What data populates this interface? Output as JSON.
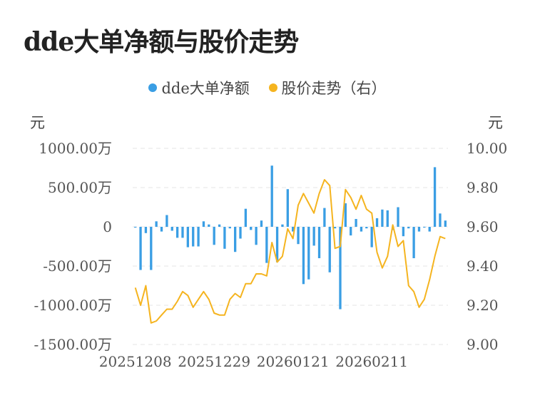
{
  "title": "dde大单净额与股价走势",
  "legend": [
    {
      "label": "dde大单净额",
      "color": "#3a9ee4"
    },
    {
      "label": "股价走势（右）",
      "color": "#f5b41f"
    }
  ],
  "axis_units": {
    "left": "元",
    "right": "元"
  },
  "chart_data": {
    "type": "bar+line",
    "x_tick_labels": [
      "20251208",
      "20251229",
      "20260121",
      "20260211"
    ],
    "x_tick_indices": [
      0,
      15,
      30,
      45
    ],
    "left_axis": {
      "ticks": [
        "1000.00万",
        "500.00万",
        "0",
        "-500.00万",
        "-1000.00万",
        "-1500.00万"
      ],
      "range": [
        -1500,
        1000
      ],
      "unit": "万"
    },
    "right_axis": {
      "ticks": [
        "10.00",
        "9.80",
        "9.60",
        "9.40",
        "9.20",
        "9.00"
      ],
      "range": [
        9.0,
        10.0
      ]
    },
    "series": [
      {
        "name": "dde大单净额",
        "type": "bar",
        "color": "#3a9ee4",
        "values": [
          -10,
          -550,
          -80,
          -550,
          70,
          -60,
          150,
          -50,
          -140,
          -140,
          -260,
          -250,
          -250,
          70,
          30,
          -230,
          30,
          -280,
          -20,
          -320,
          -150,
          230,
          -40,
          -230,
          80,
          -460,
          780,
          -450,
          30,
          480,
          -60,
          -220,
          -730,
          -670,
          -240,
          -400,
          240,
          -580,
          -20,
          -1050,
          300,
          -110,
          100,
          -60,
          -20,
          -260,
          110,
          220,
          210,
          -40,
          250,
          -120,
          -20,
          -400,
          -60,
          -10,
          -60,
          760,
          170,
          80
        ]
      },
      {
        "name": "股价走势（右）",
        "type": "line",
        "color": "#f5b41f",
        "values": [
          9.29,
          9.2,
          9.3,
          9.11,
          9.12,
          9.15,
          9.18,
          9.18,
          9.22,
          9.27,
          9.25,
          9.19,
          9.23,
          9.27,
          9.23,
          9.16,
          9.15,
          9.15,
          9.23,
          9.26,
          9.24,
          9.31,
          9.31,
          9.36,
          9.36,
          9.35,
          9.52,
          9.42,
          9.45,
          9.59,
          9.54,
          9.71,
          9.77,
          9.72,
          9.67,
          9.77,
          9.84,
          9.81,
          9.49,
          9.5,
          9.79,
          9.75,
          9.69,
          9.76,
          9.69,
          9.67,
          9.47,
          9.39,
          9.45,
          9.61,
          9.5,
          9.53,
          9.3,
          9.27,
          9.19,
          9.23,
          9.33,
          9.45,
          9.55,
          9.54
        ]
      }
    ]
  }
}
